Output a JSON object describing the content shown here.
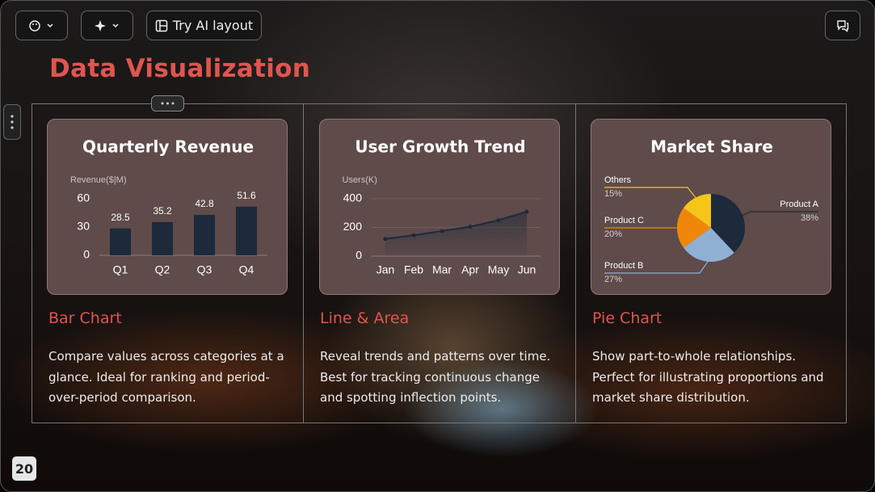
{
  "toolbar": {
    "ai_layout_button": "Try AI layout"
  },
  "title": "Data Visualization",
  "cards": [
    {
      "chart": {
        "type": "bar",
        "title": "Quarterly Revenue",
        "y_label": "Revenue($|M)",
        "categories": [
          "Q1",
          "Q2",
          "Q3",
          "Q4"
        ],
        "values": [
          28.5,
          35.2,
          42.8,
          51.6
        ],
        "color": "#1c2a3c",
        "ylim": [
          0,
          60
        ],
        "yticks": [
          0,
          30,
          60
        ],
        "grid": false
      },
      "heading": "Bar Chart",
      "description": "Compare values across categories at a glance. Ideal for ranking and period-over-period comparison."
    },
    {
      "chart": {
        "type": "line",
        "title": "User Growth Trend",
        "y_label": "Users(K)",
        "categories": [
          "Jan",
          "Feb",
          "Mar",
          "Apr",
          "May",
          "Jun"
        ],
        "values": [
          120,
          145,
          175,
          205,
          250,
          310
        ],
        "color": "#1c2a3c",
        "ylim": [
          0,
          400
        ],
        "yticks": [
          0,
          200,
          400
        ],
        "grid": true
      },
      "heading": "Line & Area",
      "description": "Reveal trends and patterns over time. Best for tracking continuous change and spotting inflection points."
    },
    {
      "chart": {
        "type": "pie",
        "title": "Market Share",
        "categories": [
          "Others",
          "Product C",
          "Product B",
          "Product A"
        ],
        "values": [
          15,
          20,
          27,
          38
        ],
        "value_labels": [
          "15%",
          "20%",
          "27%",
          "38%"
        ],
        "colors": [
          "#f5c518",
          "#f0870a",
          "#8fb0d3",
          "#1c2a3c"
        ]
      },
      "heading": "Pie Chart",
      "description": "Show part-to-whole relationships. Perfect for illustrating proportions and market share distribution."
    }
  ],
  "page_number": 20
}
